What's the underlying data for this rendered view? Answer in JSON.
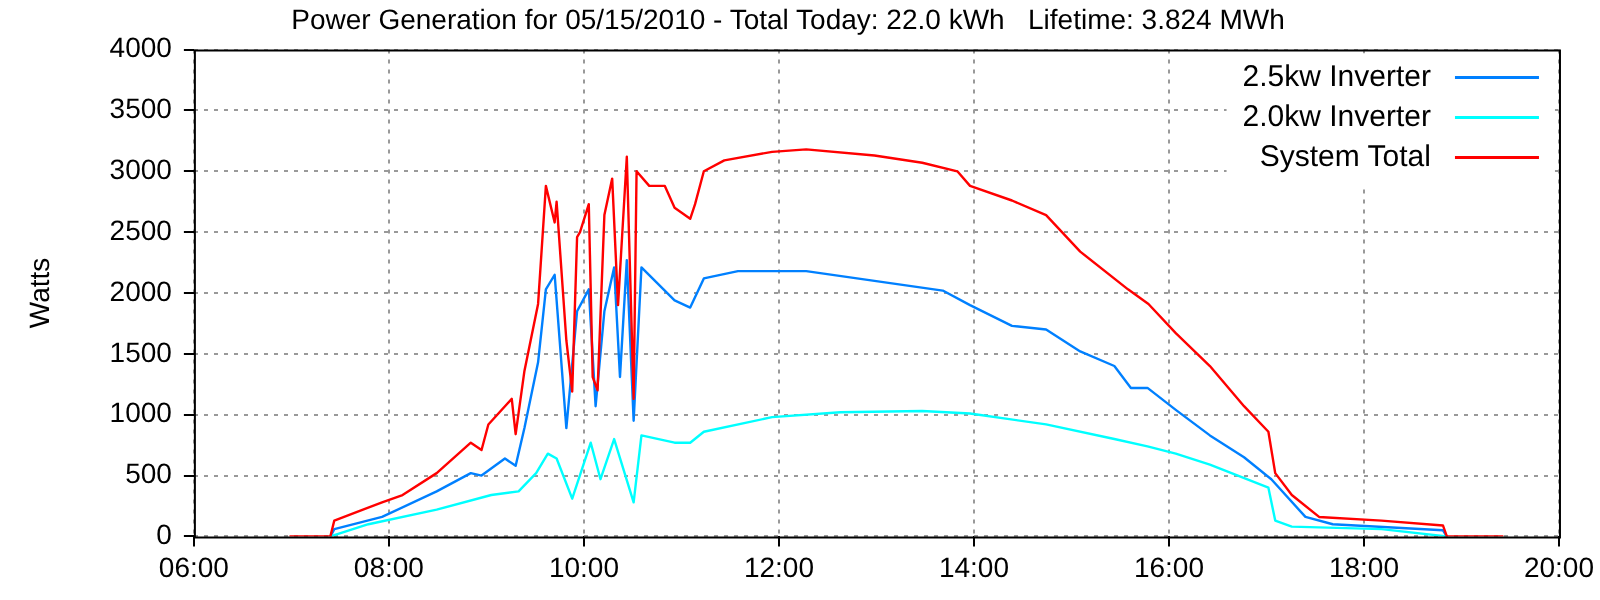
{
  "chart_data": {
    "type": "line",
    "title": "Power Generation for 05/15/2010 - Total Today: 22.0 kWh   Lifetime: 3.824 MWh",
    "ylabel": "Watts",
    "xlim": [
      6,
      20
    ],
    "xticks": [
      {
        "value": 6,
        "label": "06:00"
      },
      {
        "value": 8,
        "label": "08:00"
      },
      {
        "value": 10,
        "label": "10:00"
      },
      {
        "value": 12,
        "label": "12:00"
      },
      {
        "value": 14,
        "label": "14:00"
      },
      {
        "value": 16,
        "label": "16:00"
      },
      {
        "value": 18,
        "label": "18:00"
      },
      {
        "value": 20,
        "label": "20:00"
      }
    ],
    "ylim": [
      0,
      4000
    ],
    "yticks": [
      0,
      500,
      1000,
      1500,
      2000,
      2500,
      3000,
      3500,
      4000
    ],
    "grid": true,
    "legend": "top right",
    "marker": "none",
    "series": [
      {
        "name": "2.5kw Inverter",
        "color": "#0080ff",
        "x": [
          7.4,
          7.44,
          7.93,
          8.49,
          8.84,
          8.95,
          9.19,
          9.3,
          9.39,
          9.53,
          9.61,
          9.7,
          9.82,
          9.93,
          10.05,
          10.12,
          10.21,
          10.31,
          10.37,
          10.44,
          10.51,
          10.59,
          10.93,
          11.09,
          11.23,
          11.58,
          12.28,
          12.98,
          13.68,
          13.96,
          14.39,
          14.74,
          15.09,
          15.44,
          15.61,
          15.78,
          16.07,
          16.42,
          16.77,
          17.05,
          17.4,
          17.68,
          18.81,
          18.85
        ],
        "values": [
          0,
          60,
          160,
          370,
          520,
          500,
          640,
          580,
          890,
          1430,
          2030,
          2150,
          890,
          1850,
          2030,
          1070,
          1850,
          2210,
          1310,
          2270,
          950,
          2210,
          1940,
          1880,
          2120,
          2180,
          2180,
          2100,
          2020,
          1900,
          1730,
          1700,
          1520,
          1400,
          1220,
          1220,
          1040,
          830,
          650,
          470,
          160,
          100,
          50,
          0
        ]
      },
      {
        "name": "2.0kw Inverter",
        "color": "#00ffff",
        "x": [
          7.4,
          7.79,
          8.49,
          9.05,
          9.33,
          9.51,
          9.63,
          9.72,
          9.88,
          10.07,
          10.17,
          10.31,
          10.51,
          10.59,
          10.93,
          11.09,
          11.23,
          11.93,
          12.63,
          13.47,
          13.96,
          14.74,
          15.44,
          15.78,
          16.07,
          16.42,
          17.02,
          17.09,
          17.26,
          18.18,
          18.85
        ],
        "values": [
          0,
          100,
          220,
          340,
          370,
          520,
          680,
          640,
          310,
          770,
          470,
          800,
          280,
          830,
          770,
          770,
          860,
          980,
          1020,
          1030,
          1010,
          920,
          800,
          740,
          680,
          590,
          400,
          130,
          80,
          60,
          0
        ]
      },
      {
        "name": "System Total",
        "color": "#ff0000",
        "x": [
          6.98,
          7.4,
          7.44,
          7.93,
          8.14,
          8.49,
          8.84,
          8.95,
          9.02,
          9.26,
          9.3,
          9.39,
          9.53,
          9.61,
          9.7,
          9.72,
          9.82,
          9.88,
          9.93,
          9.96,
          10.05,
          10.09,
          10.14,
          10.21,
          10.29,
          10.35,
          10.44,
          10.51,
          10.54,
          10.67,
          10.83,
          10.93,
          11.09,
          11.14,
          11.23,
          11.44,
          11.93,
          12.28,
          12.98,
          13.47,
          13.83,
          13.96,
          14.39,
          14.74,
          15.09,
          15.58,
          15.79,
          16.07,
          16.42,
          16.77,
          17.02,
          17.09,
          17.26,
          17.54,
          18.18,
          18.81,
          18.85,
          19.43
        ],
        "values": [
          0,
          0,
          130,
          280,
          340,
          520,
          770,
          710,
          920,
          1130,
          840,
          1360,
          1910,
          2880,
          2580,
          2750,
          1610,
          1190,
          2460,
          2500,
          2730,
          1310,
          1200,
          2640,
          2940,
          1900,
          3120,
          1130,
          3000,
          2880,
          2880,
          2700,
          2610,
          2730,
          3000,
          3090,
          3160,
          3180,
          3130,
          3070,
          3000,
          2880,
          2760,
          2640,
          2340,
          2030,
          1910,
          1670,
          1400,
          1070,
          860,
          520,
          340,
          160,
          130,
          90,
          0,
          0
        ]
      }
    ]
  }
}
